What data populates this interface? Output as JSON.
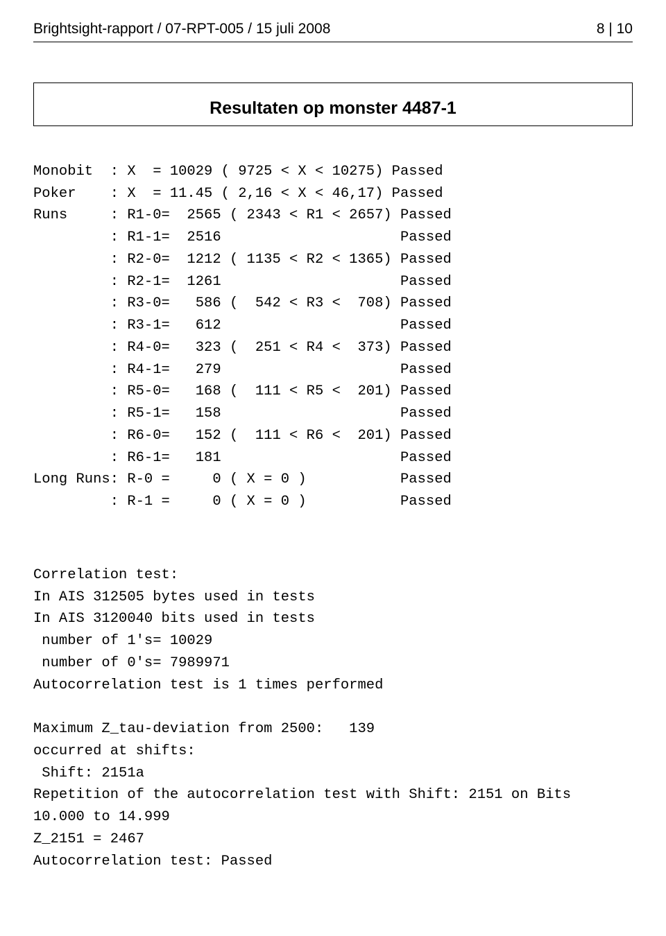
{
  "header": {
    "left": "Brightsight-rapport / 07-RPT-005 / 15 juli 2008",
    "right": "8 | 10"
  },
  "box": {
    "title": "Resultaten op monster 4487-1"
  },
  "tests": {
    "monobit": "Monobit  : X  = 10029 ( 9725 < X < 10275) Passed",
    "poker": "Poker    : X  = 11.45 ( 2,16 < X < 46,17) Passed",
    "r1_0": "Runs     : R1-0=  2565 ( 2343 < R1 < 2657) Passed",
    "r1_1": "         : R1-1=  2516                     Passed",
    "r2_0": "         : R2-0=  1212 ( 1135 < R2 < 1365) Passed",
    "r2_1": "         : R2-1=  1261                     Passed",
    "r3_0": "         : R3-0=   586 (  542 < R3 <  708) Passed",
    "r3_1": "         : R3-1=   612                     Passed",
    "r4_0": "         : R4-0=   323 (  251 < R4 <  373) Passed",
    "r4_1": "         : R4-1=   279                     Passed",
    "r5_0": "         : R5-0=   168 (  111 < R5 <  201) Passed",
    "r5_1": "         : R5-1=   158                     Passed",
    "r6_0": "         : R6-0=   152 (  111 < R6 <  201) Passed",
    "r6_1": "         : R6-1=   181                     Passed",
    "lr_0": "Long Runs: R-0 =     0 ( X = 0 )           Passed",
    "lr_1": "         : R-1 =     0 ( X = 0 )           Passed"
  },
  "correlation": {
    "l1": "Correlation test:",
    "l2": "In AIS 312505 bytes used in tests",
    "l3": "In AIS 3120040 bits used in tests",
    "l4": " number of 1's= 10029",
    "l5": " number of 0's= 7989971",
    "l6": "Autocorrelation test is 1 times performed",
    "l7": "",
    "l8": "Maximum Z_tau-deviation from 2500:   139",
    "l9": "occurred at shifts:",
    "l10": " Shift: 2151a",
    "l11": "Repetition of the autocorrelation test with Shift: 2151 on Bits",
    "l12": "10.000 to 14.999",
    "l13": "Z_2151 = 2467",
    "l14": "Autocorrelation test: Passed"
  }
}
